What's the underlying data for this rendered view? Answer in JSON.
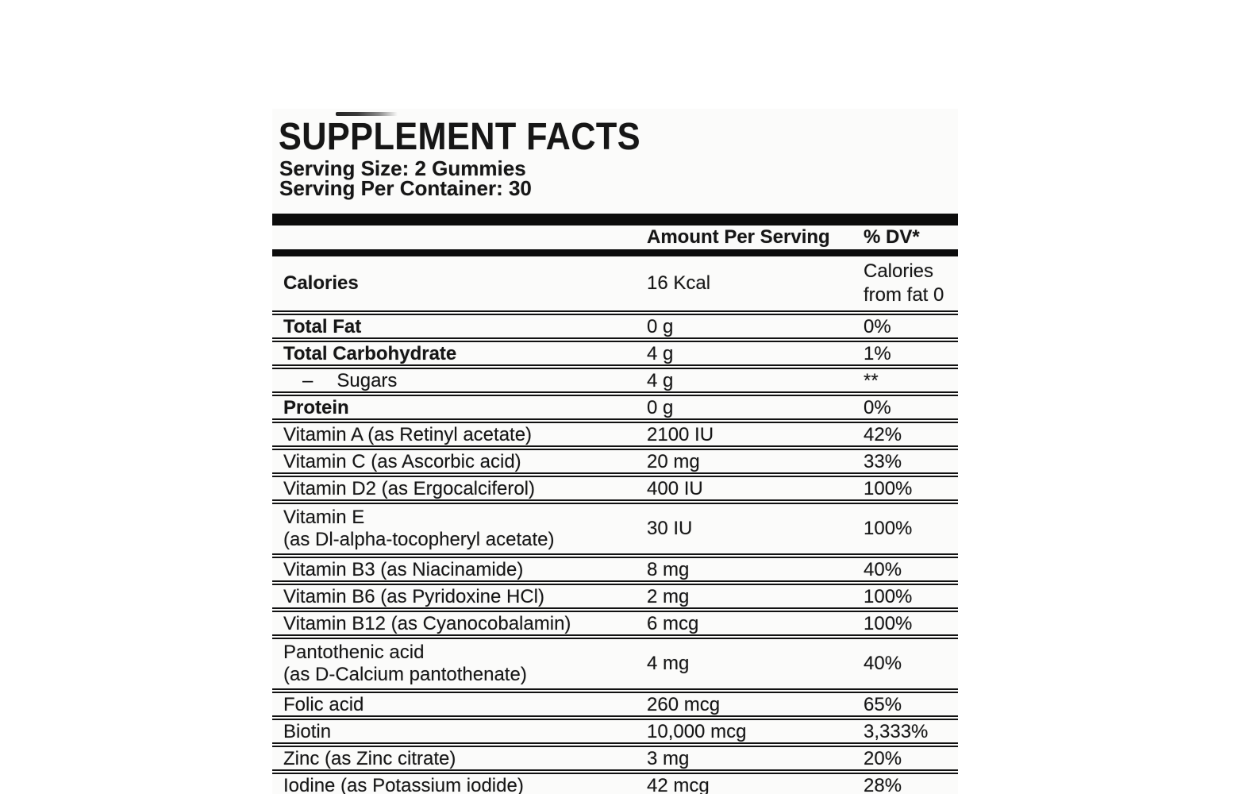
{
  "page": {
    "background": "#ffffff"
  },
  "label": {
    "title": "SUPPLEMENT FACTS",
    "serving_size": "Serving Size: 2 Gummies",
    "serving_per_container": "Serving Per Container: 30",
    "colors": {
      "ink": "#161616",
      "rule": "#0c0c0c",
      "paper": "#fbfbfa"
    },
    "columns": {
      "amount": "Amount Per Serving",
      "dv": "% DV*"
    },
    "rows": [
      {
        "name": "Calories",
        "amount": "16 Kcal",
        "dv": "Calories",
        "dv2": "from fat 0"
      },
      {
        "name": "Total Fat",
        "amount": "0 g",
        "dv": "0%"
      },
      {
        "name": "Total Carbohydrate",
        "amount": "4 g",
        "dv": "1%"
      },
      {
        "prefix": "–",
        "name": "Sugars",
        "amount": "4 g",
        "dv": "**"
      },
      {
        "name": "Protein",
        "amount": "0 g",
        "dv": "0%"
      },
      {
        "name": "Vitamin A (as Retinyl acetate)",
        "amount": "2100 IU",
        "dv": "42%"
      },
      {
        "name": "Vitamin C (as Ascorbic acid)",
        "amount": "20 mg",
        "dv": "33%"
      },
      {
        "name": "Vitamin D2 (as Ergocalciferol)",
        "amount": "400 IU",
        "dv": "100%"
      },
      {
        "name": "Vitamin E",
        "name2": "(as Dl-alpha-tocopheryl acetate)",
        "amount": "30 IU",
        "dv": "100%"
      },
      {
        "name": "Vitamin B3 (as Niacinamide)",
        "amount": "8 mg",
        "dv": "40%"
      },
      {
        "name": "Vitamin B6 (as Pyridoxine HCl)",
        "amount": "2 mg",
        "dv": "100%"
      },
      {
        "name": "Vitamin B12 (as Cyanocobalamin)",
        "amount": "6 mcg",
        "dv": "100%"
      },
      {
        "name": "Pantothenic acid",
        "name2": "(as D-Calcium pantothenate)",
        "amount": "4 mg",
        "dv": "40%"
      },
      {
        "name": "Folic acid",
        "amount": "260 mcg",
        "dv": "65%"
      },
      {
        "name": "Biotin",
        "amount": "10,000 mcg",
        "dv": "3,333%"
      },
      {
        "name": "Zinc (as Zinc citrate)",
        "amount": "3 mg",
        "dv": "20%"
      },
      {
        "name": "Iodine (as Potassium iodide)",
        "amount": "42 mcg",
        "dv": "28%"
      }
    ]
  }
}
